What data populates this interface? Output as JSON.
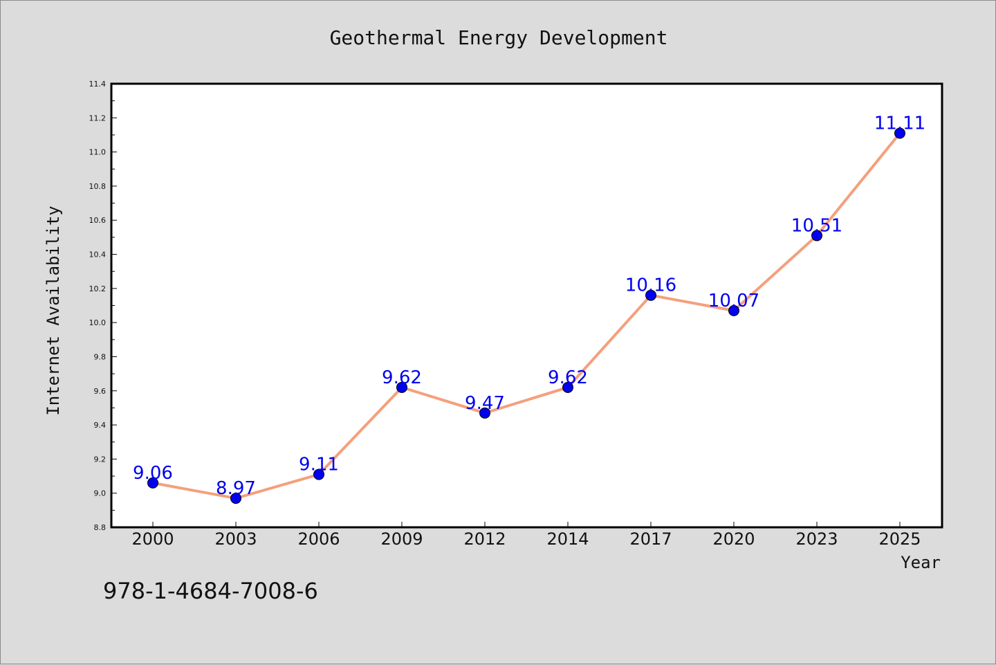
{
  "footnote": "978-1-4684-7008-6",
  "chart_data": {
    "type": "line",
    "title": "Geothermal Energy Development",
    "xlabel": "Year",
    "ylabel": "Internet Availability",
    "categories": [
      "2000",
      "2003",
      "2006",
      "2009",
      "2012",
      "2014",
      "2017",
      "2020",
      "2023",
      "2025"
    ],
    "values": [
      9.06,
      8.97,
      9.11,
      9.62,
      9.47,
      9.62,
      10.16,
      10.07,
      10.51,
      11.11
    ],
    "data_labels": [
      "9.06",
      "8.97",
      "9.11",
      "9.62",
      "9.47",
      "9.62",
      "10.16",
      "10.07",
      "10.51",
      "11.11"
    ],
    "ylim": [
      8.8,
      11.4
    ],
    "yticks": [
      "8.8",
      "9.0",
      "9.2",
      "9.4",
      "9.6",
      "9.8",
      "10.0",
      "10.2",
      "10.4",
      "10.6",
      "10.8",
      "11.0",
      "11.2",
      "11.4"
    ],
    "grid": false,
    "legend": "none",
    "colors": {
      "line": "#f4a07c",
      "marker": "#0000ee",
      "data_label": "#0000ee",
      "plot_background": "#ffffff",
      "figure_background": "#dcdcdc"
    }
  }
}
